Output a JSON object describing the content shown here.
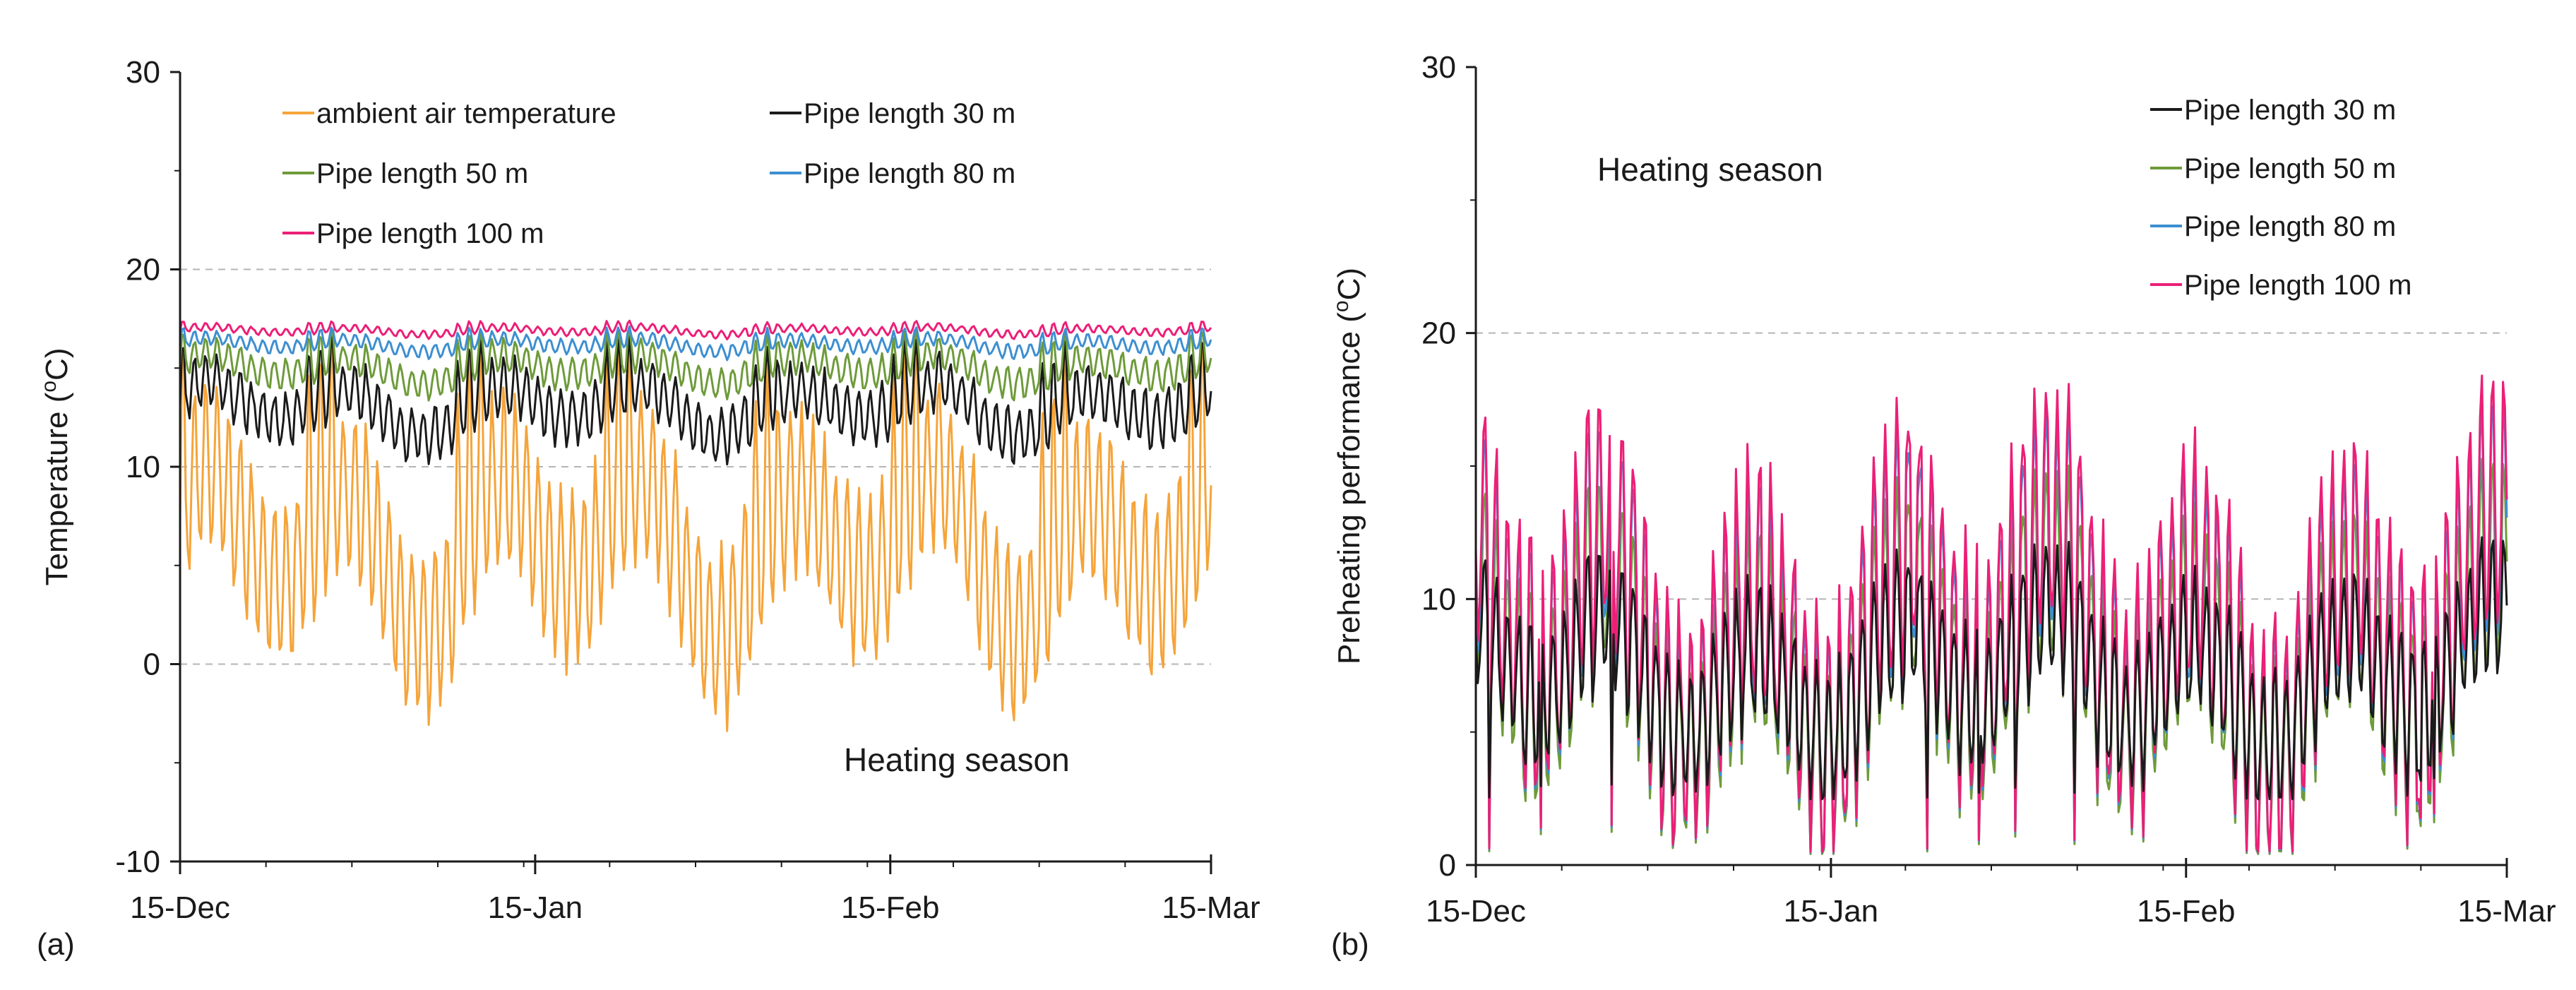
{
  "chart_data": [
    {
      "type": "line",
      "panel_label": "(a)",
      "title": "",
      "xlabel": "",
      "ylabel": "Temperature (",
      "ylabel_sup": "o",
      "ylabel_tail": "C)",
      "ylim": [
        -10,
        30
      ],
      "yticks": [
        "-10",
        "0",
        "10",
        "20",
        "30"
      ],
      "ytick_values": [
        -10,
        0,
        10,
        20,
        30
      ],
      "gridlines_at": [
        0,
        10,
        20
      ],
      "xlim_days": [
        0,
        90
      ],
      "xticks": [
        "15-Dec",
        "15-Jan",
        "15-Feb",
        "15-Mar"
      ],
      "xtick_days": [
        0,
        31,
        62,
        90
      ],
      "annotation": "Heating season",
      "series": [
        {
          "name": "ambient air temperature",
          "color": "#f5a43a",
          "base": 6,
          "amp": 5.5,
          "lo": -3.8,
          "hi": 17,
          "weight": 3
        },
        {
          "name": "Pipe length 30 m",
          "color": "#1a1a1a",
          "base": 13,
          "amp": 1.8,
          "lo": 9.4,
          "hi": 17,
          "weight": 3
        },
        {
          "name": "Pipe length 50 m",
          "color": "#6e9b3a",
          "base": 15,
          "amp": 1.0,
          "lo": 12.8,
          "hi": 17.2,
          "weight": 3
        },
        {
          "name": "Pipe length 80 m",
          "color": "#3d8fd1",
          "base": 16.2,
          "amp": 0.4,
          "lo": 15.4,
          "hi": 17.2,
          "weight": 3
        },
        {
          "name": "Pipe length 100 m",
          "color": "#ec1f77",
          "base": 16.9,
          "amp": 0.25,
          "lo": 16.4,
          "hi": 17.4,
          "weight": 3
        }
      ]
    },
    {
      "type": "line",
      "panel_label": "(b)",
      "title": "",
      "xlabel": "",
      "ylabel": "Preheating performance (",
      "ylabel_sup": "o",
      "ylabel_tail": "C)",
      "ylim": [
        0,
        30
      ],
      "yticks": [
        "0",
        "10",
        "20",
        "30"
      ],
      "ytick_values": [
        0,
        10,
        20,
        30
      ],
      "gridlines_at": [
        10,
        20
      ],
      "xlim_days": [
        0,
        90
      ],
      "xticks": [
        "15-Dec",
        "15-Jan",
        "15-Feb",
        "15-Mar"
      ],
      "xtick_days": [
        0,
        31,
        62,
        90
      ],
      "annotation": "Heating season",
      "series": [
        {
          "name": "Pipe length 30 m",
          "color": "#1a1a1a",
          "scale": 0.62,
          "weight": 3
        },
        {
          "name": "Pipe length 50 m",
          "color": "#6e9b3a",
          "scale": 0.83,
          "weight": 3
        },
        {
          "name": "Pipe length 80 m",
          "color": "#3d8fd1",
          "scale": 0.95,
          "weight": 3
        },
        {
          "name": "Pipe length 100 m",
          "color": "#ec1f77",
          "scale": 1.0,
          "weight": 3
        }
      ]
    }
  ]
}
